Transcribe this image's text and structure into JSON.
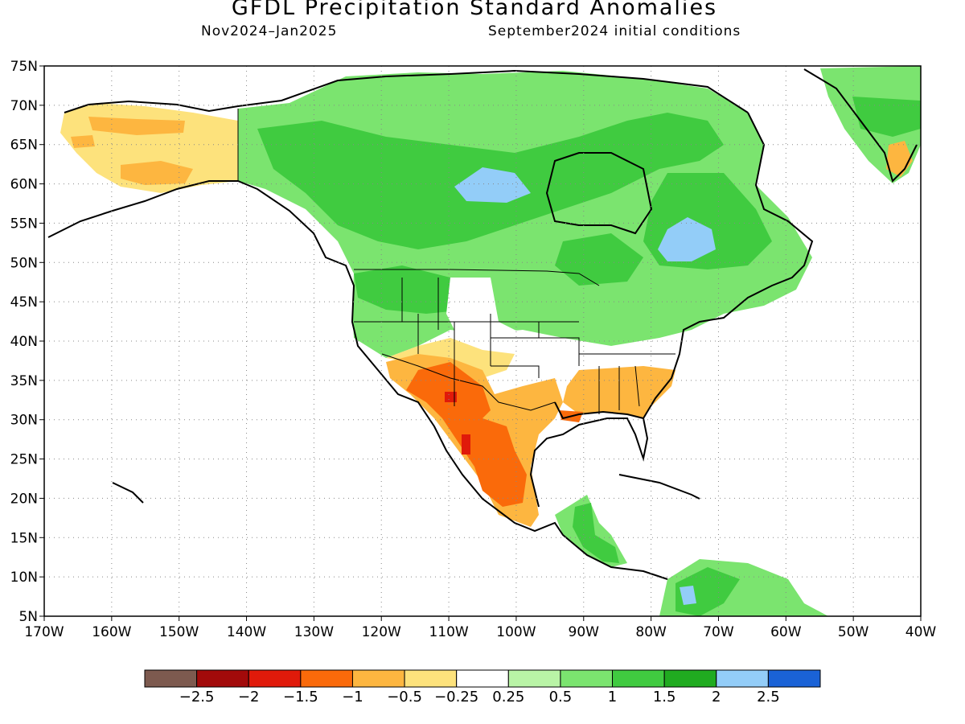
{
  "title": "GFDL Precipitation Standard Anomalies",
  "subtitle_left": "Nov2024–Jan2025",
  "subtitle_right": "September2024 initial conditions",
  "map": {
    "lon_range": [
      -170,
      -40
    ],
    "lat_range": [
      5,
      75
    ],
    "lon_ticks": [
      "170W",
      "160W",
      "150W",
      "140W",
      "130W",
      "120W",
      "110W",
      "100W",
      "90W",
      "80W",
      "70W",
      "60W",
      "50W",
      "40W"
    ],
    "lat_ticks": [
      "75N",
      "70N",
      "65N",
      "60N",
      "55N",
      "50N",
      "45N",
      "40N",
      "35N",
      "30N",
      "25N",
      "20N",
      "15N",
      "10N",
      "5N"
    ],
    "grid": true
  },
  "colorbar": {
    "colors": [
      "#7d5a4f",
      "#a20a0a",
      "#e01a0a",
      "#fa6a0a",
      "#fdb640",
      "#fde27c",
      "#ffffff",
      "#b9f4a6",
      "#7be46f",
      "#40cb40",
      "#20ab20",
      "#93cdf8",
      "#1a62d6"
    ],
    "labels": [
      "−2.5",
      "−2",
      "−1.5",
      "−1",
      "−0.5",
      "−0.25",
      "0.25",
      "0.5",
      "1",
      "1.5",
      "2",
      "2.5"
    ]
  },
  "anomaly_regions": [
    {
      "name": "alaska-dry",
      "color": "#fde27c"
    },
    {
      "name": "alaska-dry-core",
      "color": "#fdb640"
    },
    {
      "name": "canada-wet",
      "color": "#7be46f"
    },
    {
      "name": "canada-wet-core",
      "color": "#40cb40"
    },
    {
      "name": "quebec-very-wet",
      "color": "#93cdf8"
    },
    {
      "name": "hudson-very-wet",
      "color": "#93cdf8"
    },
    {
      "name": "southwest-dry",
      "color": "#fdb640"
    },
    {
      "name": "mexico-very-dry",
      "color": "#fa6a0a"
    },
    {
      "name": "mexico-extreme-dry",
      "color": "#e01a0a"
    },
    {
      "name": "southeast-dry",
      "color": "#fdb640"
    },
    {
      "name": "central-america-wet",
      "color": "#40cb40"
    },
    {
      "name": "greenland-wet",
      "color": "#40cb40"
    }
  ]
}
